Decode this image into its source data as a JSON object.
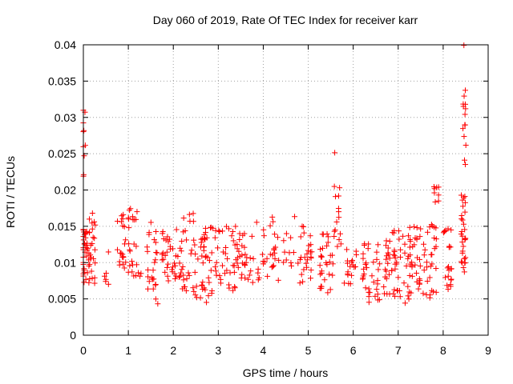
{
  "chart_data": {
    "type": "scatter",
    "title": "Day 060 of 2019, Rate Of TEC Index for receiver karr",
    "xlabel": "GPS time / hours",
    "ylabel": "ROTI / TECUs",
    "xlim": [
      0,
      9
    ],
    "ylim": [
      0,
      0.04
    ],
    "grid": true,
    "marker": "+",
    "color": "#ff0000",
    "x_ticks": [
      "0",
      "1",
      "2",
      "3",
      "4",
      "5",
      "6",
      "7",
      "8",
      "9"
    ],
    "y_ticks": [
      "0",
      "0.005",
      "0.01",
      "0.015",
      "0.02",
      "0.025",
      "0.03",
      "0.035",
      "0.04"
    ],
    "clusters": [
      {
        "x": 0.0,
        "x_spread": 0.05,
        "y_min": 0.021,
        "y_max": 0.031,
        "n": 10
      },
      {
        "x": 0.05,
        "x_spread": 0.1,
        "y_min": 0.007,
        "y_max": 0.015,
        "n": 40
      },
      {
        "x": 0.2,
        "x_spread": 0.08,
        "y_min": 0.007,
        "y_max": 0.017,
        "n": 20
      },
      {
        "x": 0.55,
        "x_spread": 0.1,
        "y_min": 0.0055,
        "y_max": 0.012,
        "n": 6
      },
      {
        "x": 0.9,
        "x_spread": 0.15,
        "y_min": 0.009,
        "y_max": 0.017,
        "n": 25
      },
      {
        "x": 1.15,
        "x_spread": 0.15,
        "y_min": 0.008,
        "y_max": 0.0175,
        "n": 22
      },
      {
        "x": 1.55,
        "x_spread": 0.15,
        "y_min": 0.004,
        "y_max": 0.016,
        "n": 25
      },
      {
        "x": 1.95,
        "x_spread": 0.2,
        "y_min": 0.007,
        "y_max": 0.015,
        "n": 35
      },
      {
        "x": 2.35,
        "x_spread": 0.2,
        "y_min": 0.005,
        "y_max": 0.017,
        "n": 35
      },
      {
        "x": 2.8,
        "x_spread": 0.2,
        "y_min": 0.0045,
        "y_max": 0.015,
        "n": 45
      },
      {
        "x": 3.2,
        "x_spread": 0.2,
        "y_min": 0.006,
        "y_max": 0.015,
        "n": 30
      },
      {
        "x": 3.6,
        "x_spread": 0.2,
        "y_min": 0.007,
        "y_max": 0.014,
        "n": 30
      },
      {
        "x": 4.1,
        "x_spread": 0.25,
        "y_min": 0.0065,
        "y_max": 0.0165,
        "n": 30
      },
      {
        "x": 4.6,
        "x_spread": 0.2,
        "y_min": 0.009,
        "y_max": 0.017,
        "n": 12
      },
      {
        "x": 4.95,
        "x_spread": 0.15,
        "y_min": 0.007,
        "y_max": 0.015,
        "n": 25
      },
      {
        "x": 5.4,
        "x_spread": 0.15,
        "y_min": 0.005,
        "y_max": 0.014,
        "n": 30
      },
      {
        "x": 5.65,
        "x_spread": 0.08,
        "y_min": 0.012,
        "y_max": 0.021,
        "n": 15
      },
      {
        "x": 5.6,
        "x_spread": 0.02,
        "y_min": 0.025,
        "y_max": 0.0252,
        "n": 1
      },
      {
        "x": 5.95,
        "x_spread": 0.15,
        "y_min": 0.007,
        "y_max": 0.012,
        "n": 18
      },
      {
        "x": 6.4,
        "x_spread": 0.2,
        "y_min": 0.0045,
        "y_max": 0.013,
        "n": 35
      },
      {
        "x": 6.85,
        "x_spread": 0.2,
        "y_min": 0.005,
        "y_max": 0.015,
        "n": 45
      },
      {
        "x": 7.3,
        "x_spread": 0.2,
        "y_min": 0.004,
        "y_max": 0.015,
        "n": 45
      },
      {
        "x": 7.7,
        "x_spread": 0.15,
        "y_min": 0.005,
        "y_max": 0.016,
        "n": 30
      },
      {
        "x": 7.85,
        "x_spread": 0.06,
        "y_min": 0.018,
        "y_max": 0.0205,
        "n": 8
      },
      {
        "x": 8.1,
        "x_spread": 0.1,
        "y_min": 0.006,
        "y_max": 0.015,
        "n": 22
      },
      {
        "x": 8.45,
        "x_spread": 0.05,
        "y_min": 0.008,
        "y_max": 0.02,
        "n": 30
      },
      {
        "x": 8.47,
        "x_spread": 0.04,
        "y_min": 0.022,
        "y_max": 0.034,
        "n": 14
      },
      {
        "x": 8.47,
        "x_spread": 0.01,
        "y_min": 0.0398,
        "y_max": 0.04,
        "n": 1
      }
    ]
  }
}
